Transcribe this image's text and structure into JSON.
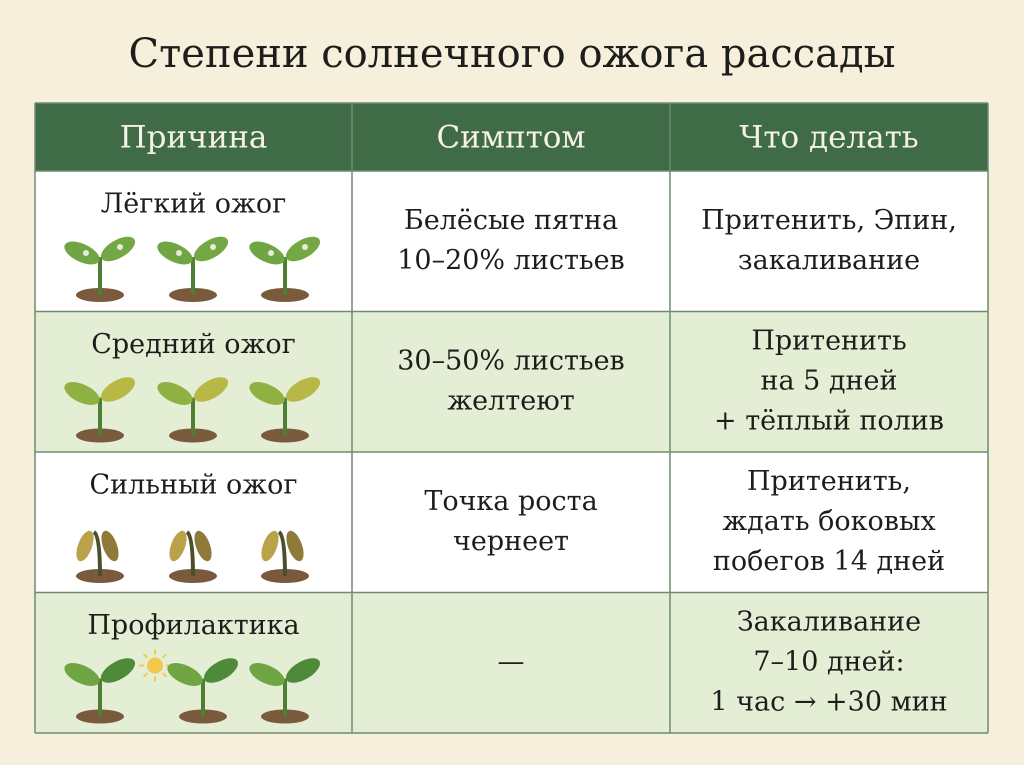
{
  "title": "Степени солнечного ожога рассады",
  "table": {
    "header": [
      "Причина",
      "Симптом",
      "Что делать"
    ],
    "rows": [
      {
        "cause": "Лёгкий ожог",
        "symptom": [
          "Белёсые пятна",
          "10–20% листьев"
        ],
        "action": [
          "Притенить, Эпин,",
          "закаливание"
        ]
      },
      {
        "cause": "Средний ожог",
        "symptom": [
          "30–50% листьев",
          "желтеют"
        ],
        "action": [
          "Притенить",
          "на 5 дней",
          "+ тёплый полив"
        ]
      },
      {
        "cause": "Сильный ожог",
        "symptom": [
          "Точка роста",
          "чернеет"
        ],
        "action": [
          "Притенить,",
          "ждать боковых",
          "побегов 14 дней"
        ]
      },
      {
        "cause": "Профилактика",
        "symptom": [
          "—"
        ],
        "action": [
          "Закаливание",
          "7–10 дней:",
          "1 час → +30 мин"
        ]
      }
    ]
  }
}
